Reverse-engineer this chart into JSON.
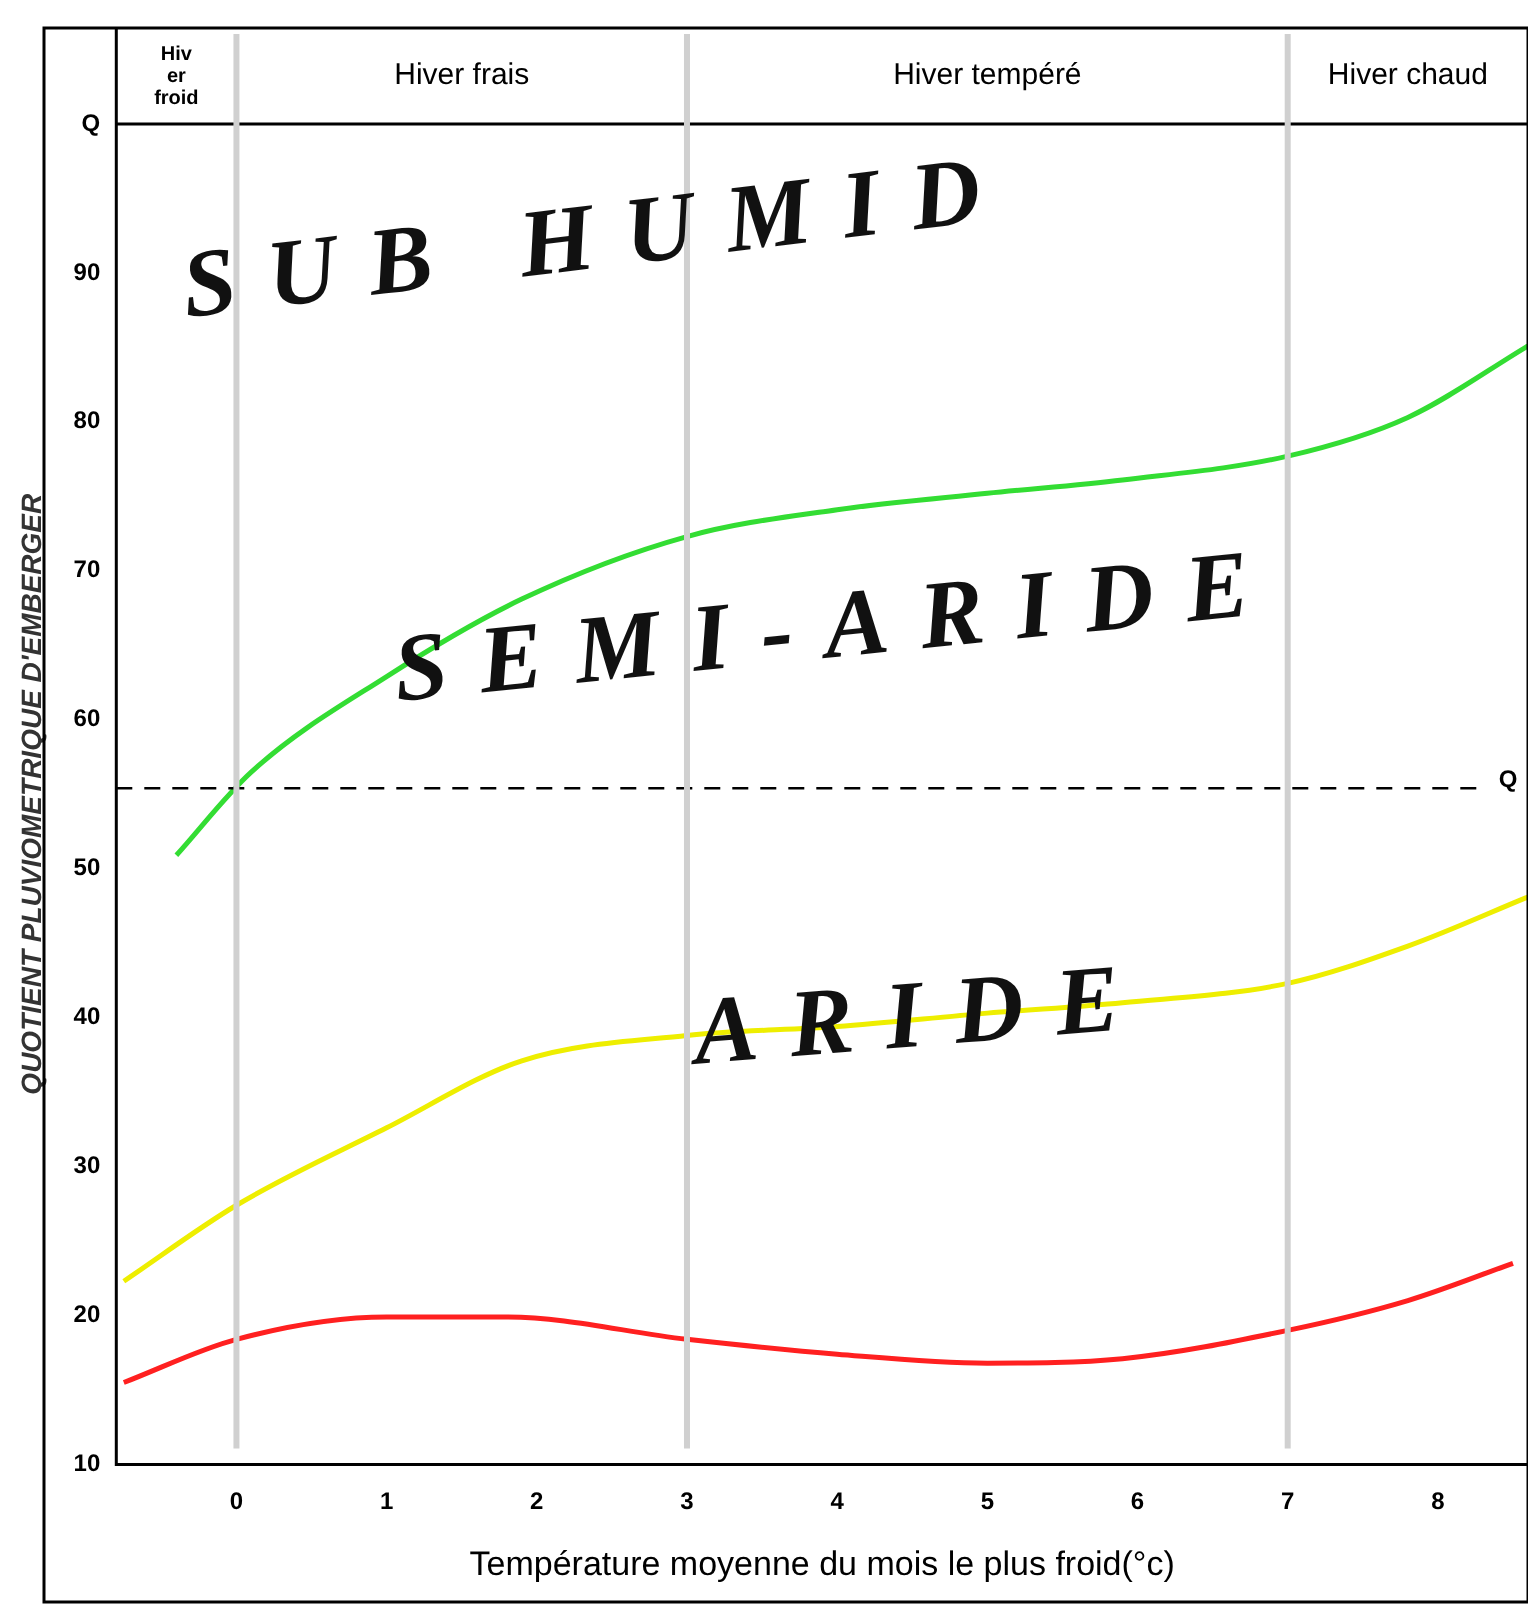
{
  "chart_data": {
    "type": "line",
    "xlabel": "Température moyenne du mois le plus froid(°c)",
    "ylabel": "QUOTIENT PLUVIOMETRIQUE D'EMBERGER",
    "xlim": [
      -0.8,
      8.6
    ],
    "xticks": [
      0,
      1,
      2,
      3,
      4,
      5,
      6,
      7,
      8
    ],
    "ylim": [
      10,
      100
    ],
    "yticks": [
      10,
      20,
      30,
      40,
      50,
      60,
      70,
      80,
      90,
      {
        "value": 100,
        "label": "Q"
      }
    ],
    "grid": false,
    "legend": false,
    "marker": "none",
    "line_style": "solid",
    "series": [
      {
        "color": "#33dd33",
        "x": [
          -0.4,
          0.1,
          1.0,
          1.9,
          3.0,
          4.0,
          5.0,
          5.9,
          7.0,
          7.8,
          8.6
        ],
        "values": [
          50.9,
          56.5,
          62.9,
          68.1,
          72.3,
          74.1,
          75.2,
          76.1,
          77.7,
          80.3,
          85.1
        ]
      },
      {
        "color": "#eeee00",
        "x": [
          -0.75,
          0.0,
          1.0,
          1.9,
          3.0,
          4.0,
          5.0,
          5.9,
          7.0,
          7.8,
          8.6
        ],
        "values": [
          22.3,
          27.4,
          32.6,
          37.1,
          38.8,
          39.4,
          40.3,
          41.0,
          42.3,
          44.8,
          48.1
        ]
      },
      {
        "color": "#ff2020",
        "x": [
          -0.75,
          0.0,
          1.0,
          1.8,
          3.0,
          4.0,
          5.0,
          5.9,
          7.0,
          7.8,
          8.5
        ],
        "values": [
          15.5,
          18.4,
          19.9,
          19.9,
          18.4,
          17.4,
          16.8,
          17.1,
          19.0,
          21.0,
          23.5
        ]
      }
    ],
    "ref_lines": [
      {
        "axis": "y",
        "value": 55.4,
        "label": "Q",
        "line_style": "dashed"
      },
      {
        "axis": "x",
        "value": 0,
        "color": "#d0d0d0"
      },
      {
        "axis": "x",
        "value": 3,
        "color": "#d0d0d0"
      },
      {
        "axis": "x",
        "value": 7,
        "color": "#d0d0d0"
      }
    ],
    "annotations": [
      "Hiv er froid",
      "Hiver frais",
      "Hiver tempéré",
      "Hiver chaud",
      "SUB HUMID",
      "SEMI-ARIDE",
      "ARIDE"
    ]
  }
}
